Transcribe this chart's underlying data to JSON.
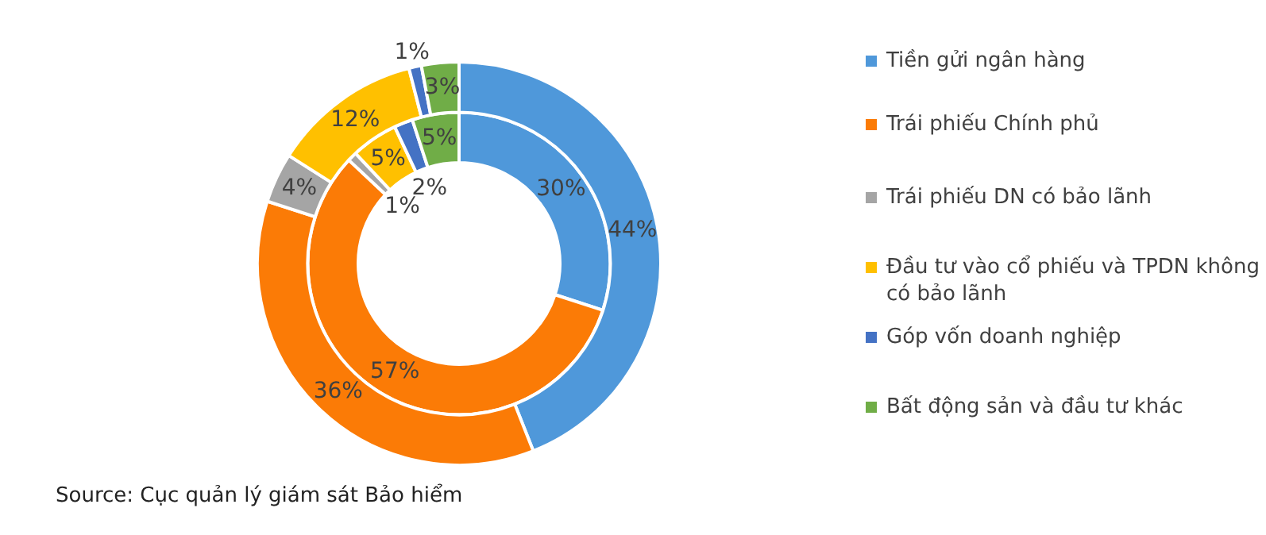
{
  "chart_data": {
    "type": "donut",
    "categories": [
      "Tiền gửi ngân hàng",
      "Trái phiếu Chính phủ",
      "Trái phiếu DN có bảo lãnh",
      "Đầu tư vào cổ phiếu và TPDN không có bảo lãnh",
      "Góp vốn doanh nghiệp",
      "Bất động sản và đầu tư khác"
    ],
    "colors": [
      "#4f98da",
      "#fb7b06",
      "#a5a5a5",
      "#ffc000",
      "#4472c4",
      "#70ad47"
    ],
    "series": [
      {
        "values": [
          44,
          36,
          4,
          12,
          1,
          3
        ],
        "value_labels": [
          "44%",
          "36%",
          "4%",
          "12%",
          "1%",
          "3%"
        ]
      },
      {
        "values": [
          30,
          57,
          1,
          5,
          2,
          5
        ],
        "value_labels": [
          "30%",
          "57%",
          "1%",
          "5%",
          "2%",
          "5%"
        ]
      }
    ],
    "legend": "right",
    "annotations": [
      "Source: Cục quản lý giám sát Bảo hiểm"
    ]
  }
}
